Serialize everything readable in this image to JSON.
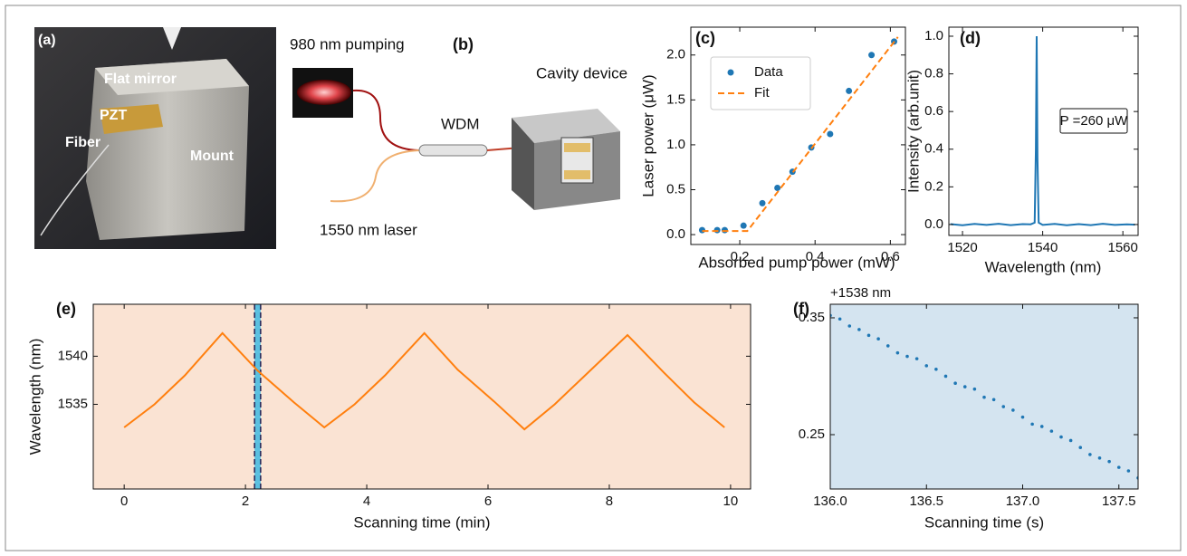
{
  "figure": {
    "a": {
      "label": "(a)",
      "annotations": [
        "Flat mirror",
        "PZT",
        "Fiber",
        "Mount"
      ]
    },
    "b": {
      "label": "(b)",
      "pump": "980 nm pumping",
      "coupler": "WDM",
      "device": "Cavity device",
      "laser": "1550 nm laser"
    }
  },
  "chart_data": [
    {
      "type": "scatter",
      "panel_label": "(c)",
      "x_label": "Absorbed pump power (mW)",
      "y_label": "Laser power (μW)",
      "xlim": [
        0.07,
        0.64
      ],
      "ylim": [
        -0.11,
        2.31
      ],
      "xticks": [
        0.2,
        0.4,
        0.6
      ],
      "yticks": [
        {
          "value": 0,
          "label": "0.0"
        },
        0.5,
        {
          "value": 1,
          "label": "1.0"
        },
        1.5,
        {
          "value": 2,
          "label": "2.0"
        }
      ],
      "legend": "upper left",
      "series": [
        {
          "name": "Data",
          "type": "scatter",
          "color": "#1f77b4",
          "x": [
            0.1,
            0.14,
            0.16,
            0.21,
            0.26,
            0.3,
            0.34,
            0.39,
            0.44,
            0.49,
            0.55,
            0.61
          ],
          "values": [
            0.05,
            0.05,
            0.05,
            0.1,
            0.35,
            0.52,
            0.7,
            0.97,
            1.12,
            1.6,
            2.0,
            2.15
          ]
        },
        {
          "name": "Fit",
          "type": "dashed-line",
          "color": "#ff7f0e",
          "x": [
            0.1,
            0.22,
            0.62
          ],
          "values": [
            0.04,
            0.04,
            2.2
          ]
        }
      ]
    },
    {
      "type": "line",
      "panel_label": "(d)",
      "x_label": "Wavelength (nm)",
      "y_label": "Intensity (arb.unit)",
      "annotation": "P =260 μW",
      "xlim": [
        1516.6,
        1563.8
      ],
      "ylim": [
        -0.058,
        1.048
      ],
      "xticks": [
        1520,
        1540,
        1560
      ],
      "yticks": [
        {
          "value": 0,
          "label": "0.0"
        },
        0.2,
        0.4,
        0.6,
        0.8,
        {
          "value": 1,
          "label": "1.0"
        }
      ],
      "series": [
        {
          "type": "line",
          "color": "#1f77b4",
          "x": [
            1517,
            1520,
            1523,
            1526,
            1529,
            1532,
            1535,
            1537,
            1538,
            1538.3,
            1538.5,
            1538.7,
            1539,
            1540,
            1543,
            1546,
            1549,
            1552,
            1555,
            1558,
            1561,
            1563
          ],
          "values": [
            0.002,
            -0.004,
            0.003,
            -0.002,
            0.004,
            -0.003,
            0.002,
            0.001,
            0.01,
            0.4,
            1.0,
            0.35,
            0.01,
            -0.002,
            0.003,
            -0.004,
            0.002,
            -0.003,
            0.004,
            -0.002,
            0.001,
            -0.001
          ]
        }
      ]
    },
    {
      "type": "line",
      "panel_label": "(e)",
      "x_label": "Scanning time (min)",
      "y_label": "Wavelength (nm)",
      "background": "#fae3d3",
      "highlight": {
        "x": [
          2.15,
          2.25
        ],
        "color": "#5bc0e0"
      },
      "xlim": [
        -0.51,
        10.33
      ],
      "ylim": [
        1526.2,
        1545.4
      ],
      "xticks": [
        0,
        2,
        4,
        6,
        8,
        10
      ],
      "yticks": [
        1535,
        1540
      ],
      "series": [
        {
          "type": "line",
          "color": "#ff7f0e",
          "x": [
            0,
            0.5,
            1.0,
            1.62,
            2.2,
            2.8,
            3.3,
            3.8,
            4.3,
            4.95,
            5.5,
            6.1,
            6.6,
            7.1,
            7.6,
            8.3,
            8.9,
            9.4,
            9.9
          ],
          "values": [
            1532.6,
            1535,
            1538,
            1542.4,
            1538.5,
            1535.2,
            1532.6,
            1535,
            1538,
            1542.4,
            1538.6,
            1535.3,
            1532.4,
            1535,
            1538,
            1542.2,
            1538.3,
            1535.2,
            1532.6
          ]
        }
      ]
    },
    {
      "type": "scatter",
      "panel_label": "(f)",
      "x_label": "Scanning time (s)",
      "offset_label": "+1538 nm",
      "background": "#d4e4f0",
      "xlim": [
        136.0,
        137.6
      ],
      "ylim": [
        0.2035,
        0.3616
      ],
      "xticks": [
        {
          "value": 136,
          "label": "136.0"
        },
        136.5,
        {
          "value": 137,
          "label": "137.0"
        },
        137.5
      ],
      "yticks": [
        0.25,
        0.35
      ],
      "series": [
        {
          "type": "small-dots",
          "color": "#1f77b4",
          "x": [
            136.0,
            136.05,
            136.1,
            136.15,
            136.2,
            136.25,
            136.3,
            136.35,
            136.4,
            136.45,
            136.5,
            136.55,
            136.6,
            136.65,
            136.7,
            136.75,
            136.8,
            136.85,
            136.9,
            136.95,
            137.0,
            137.05,
            137.1,
            137.15,
            137.2,
            137.25,
            137.3,
            137.35,
            137.4,
            137.45,
            137.5,
            137.55,
            137.6
          ],
          "values": [
            0.352,
            0.349,
            0.343,
            0.34,
            0.335,
            0.332,
            0.326,
            0.32,
            0.317,
            0.315,
            0.309,
            0.306,
            0.3,
            0.294,
            0.291,
            0.289,
            0.282,
            0.28,
            0.274,
            0.271,
            0.265,
            0.259,
            0.257,
            0.253,
            0.248,
            0.245,
            0.239,
            0.233,
            0.23,
            0.227,
            0.222,
            0.219,
            0.213
          ]
        }
      ]
    }
  ]
}
